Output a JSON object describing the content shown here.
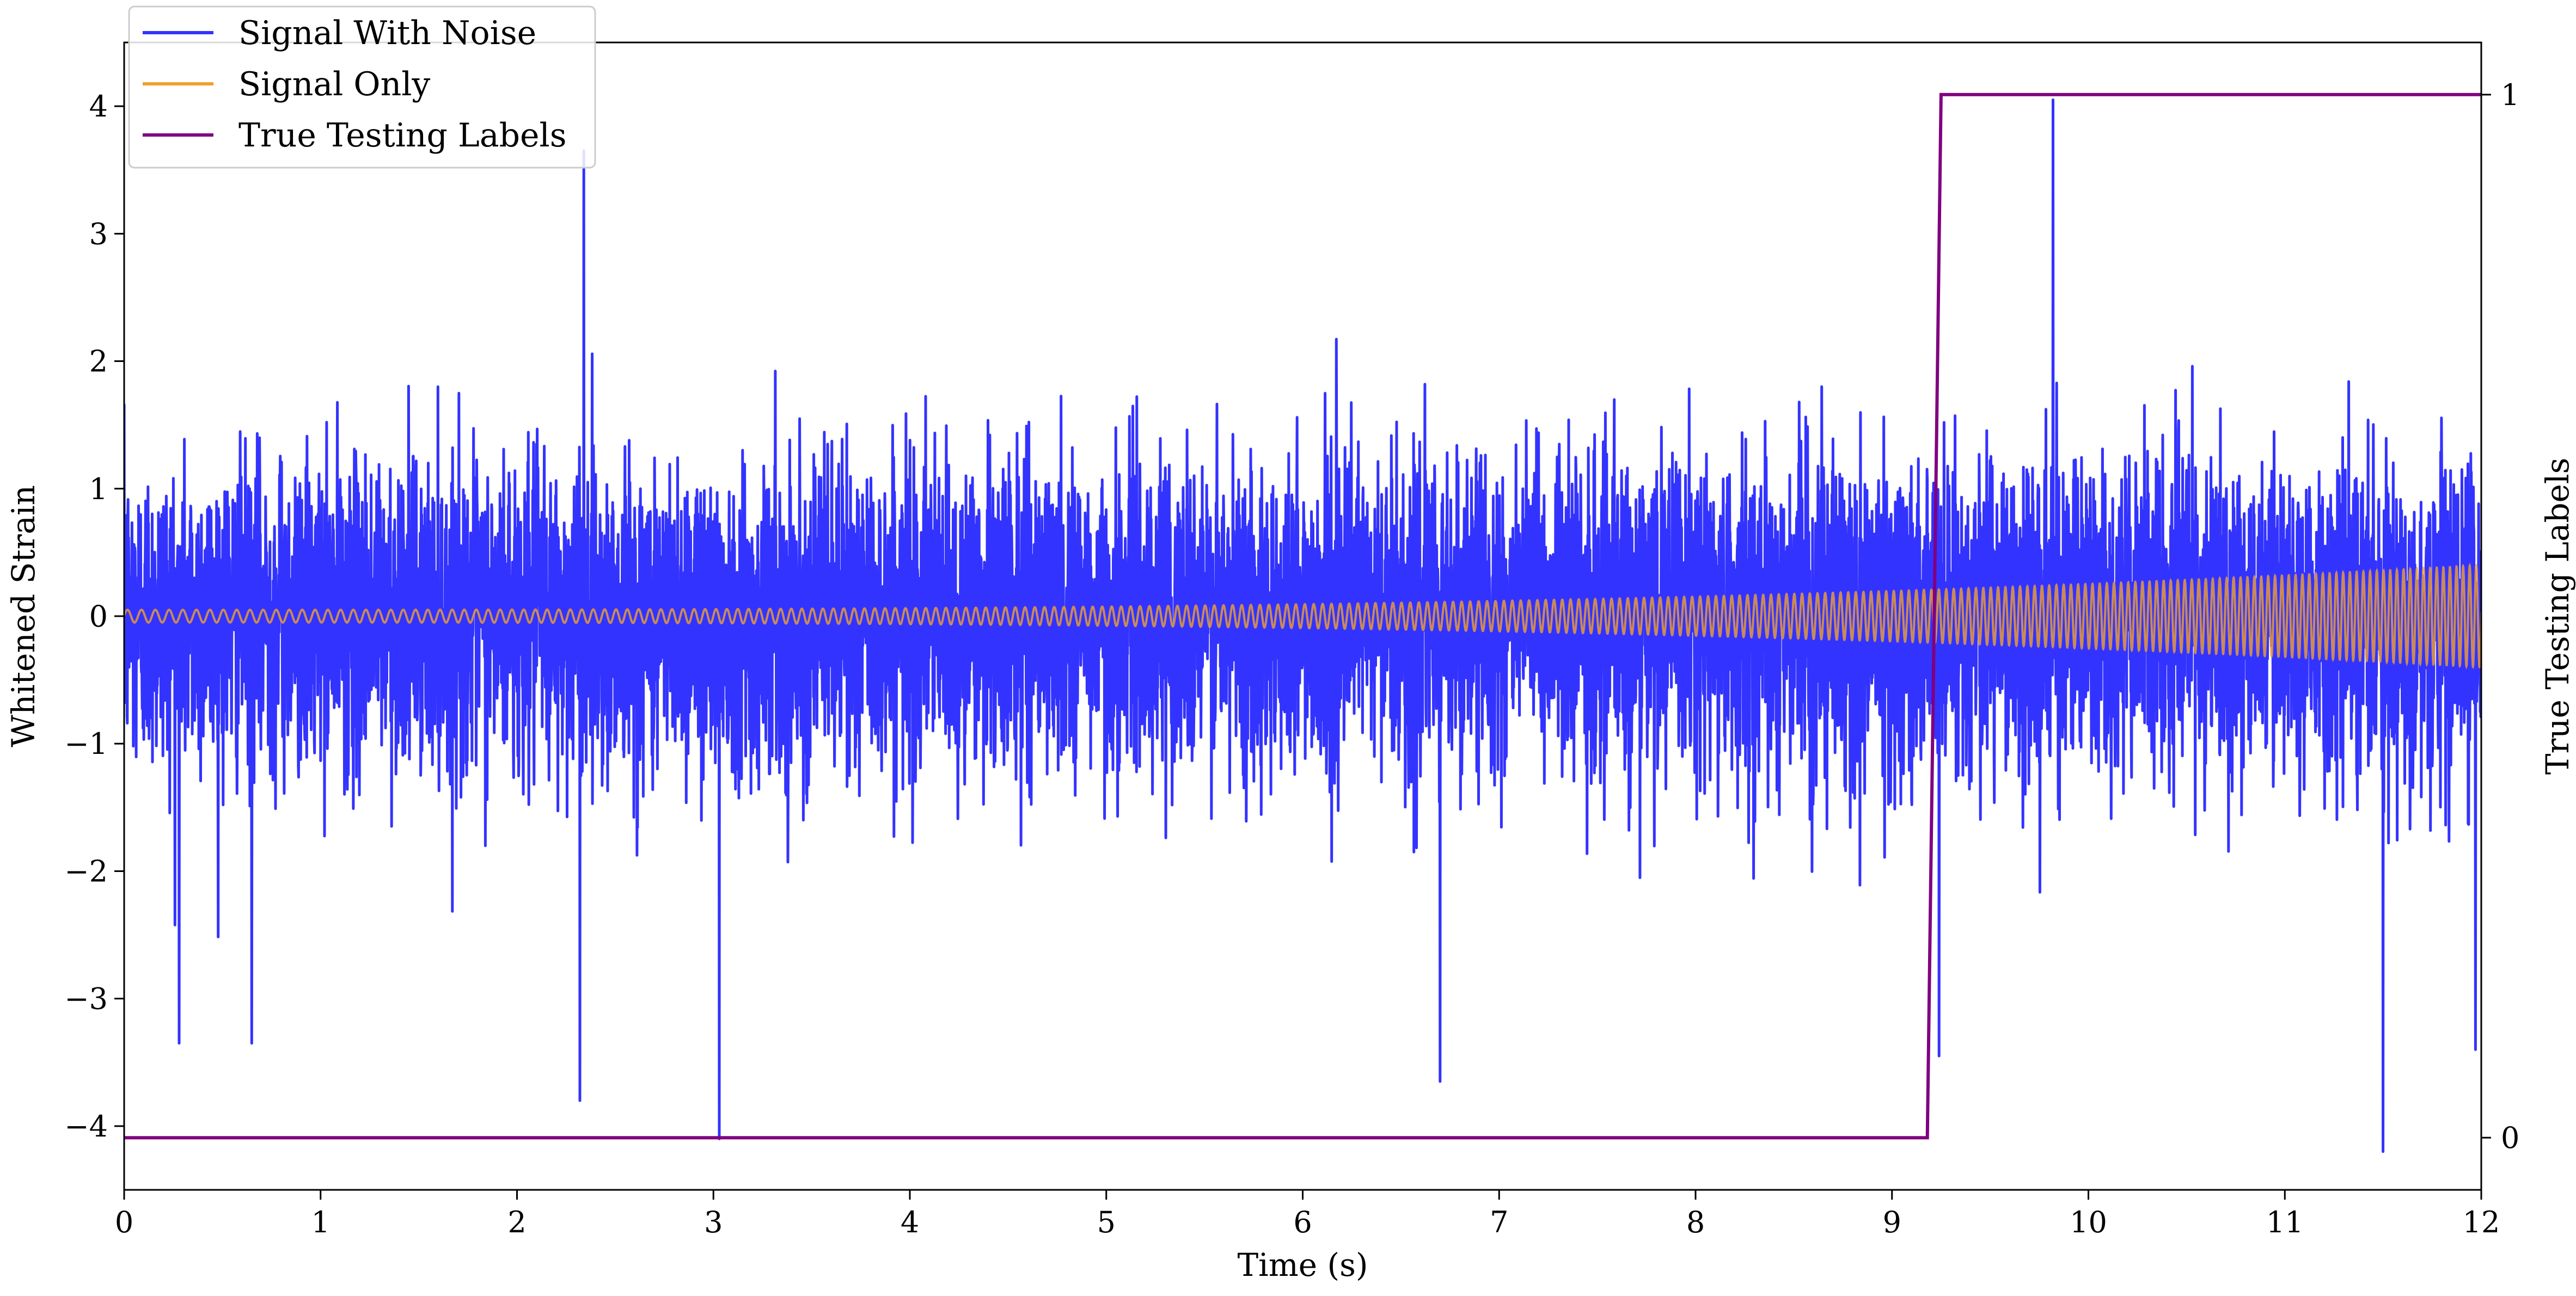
{
  "chart_data": {
    "type": "line",
    "title": "",
    "xlabel": "Time (s)",
    "ylabel": "Whitened Strain",
    "y2label": "True Testing Labels",
    "xlim": [
      0,
      12
    ],
    "ylim": [
      -4.5,
      4.5
    ],
    "y2lim": [
      -0.05,
      1.05
    ],
    "xticks": [
      0,
      1,
      2,
      3,
      4,
      5,
      6,
      7,
      8,
      9,
      10,
      11,
      12
    ],
    "yticks": [
      -4,
      -3,
      -2,
      -1,
      0,
      1,
      2,
      3,
      4
    ],
    "y2ticks": [
      0,
      1
    ],
    "grid": false,
    "legend_position": "top-left",
    "series": [
      {
        "name": "Signal With Noise",
        "axis": "left",
        "color": "#3333ff",
        "description_values": {
          "noise_std": 0.6,
          "typical_peak_range": [
            -3.5,
            3.8
          ],
          "extreme_points": [
            {
              "x": 2.34,
              "y": 3.65
            },
            {
              "x": 3.03,
              "y": -4.1
            },
            {
              "x": 2.32,
              "y": -3.8
            },
            {
              "x": 9.82,
              "y": 4.05
            },
            {
              "x": 11.5,
              "y": -4.2
            },
            {
              "x": 6.7,
              "y": -3.65
            },
            {
              "x": 0.28,
              "y": -3.35
            },
            {
              "x": 0.65,
              "y": -3.35
            },
            {
              "x": 9.24,
              "y": -3.45
            },
            {
              "x": 11.97,
              "y": -3.4
            }
          ]
        }
      },
      {
        "name": "Signal Only",
        "axis": "left",
        "color": "#f0a030",
        "description_values": {
          "type": "chirp",
          "amplitude_start": 0.05,
          "amplitude_end": 0.4,
          "x_range": [
            0,
            12
          ]
        }
      },
      {
        "name": "True Testing Labels",
        "axis": "right",
        "color": "#800080",
        "x": [
          0,
          9.18,
          9.25,
          12
        ],
        "values": [
          0,
          0,
          1,
          1
        ]
      }
    ]
  }
}
